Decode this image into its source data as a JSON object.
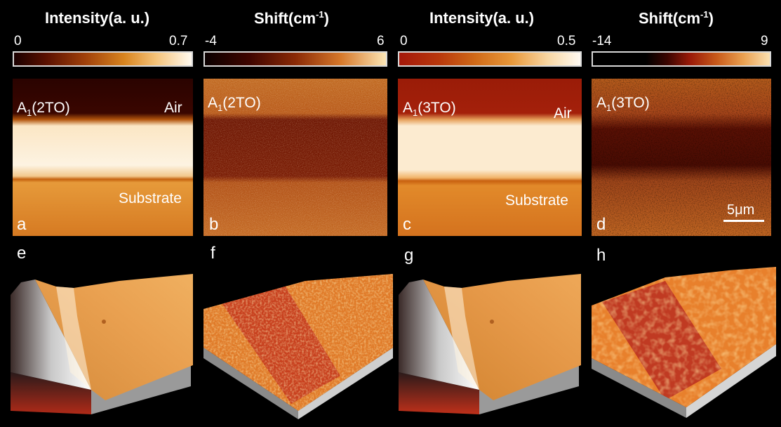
{
  "panels": [
    {
      "id": "a",
      "title": "Intensity(a. u.)",
      "tick_min": "0",
      "tick_max": "0.7",
      "mode_main": "A",
      "mode_sub": "1",
      "mode_rest": "(2TO)",
      "air": "Air",
      "substrate": "Substrate",
      "type": "intensity"
    },
    {
      "id": "b",
      "title_main": "Shift(cm",
      "title_sup": "-1",
      "title_end": ")",
      "tick_min": "-4",
      "tick_max": "6",
      "mode_main": "A",
      "mode_sub": "1",
      "mode_rest": "(2TO)",
      "type": "shift"
    },
    {
      "id": "c",
      "title": "Intensity(a. u.)",
      "tick_min": "0",
      "tick_max": "0.5",
      "mode_main": "A",
      "mode_sub": "1",
      "mode_rest": "(3TO)",
      "air": "Air",
      "substrate": "Substrate",
      "type": "intensity"
    },
    {
      "id": "d",
      "title_main": "Shift(cm",
      "title_sup": "-1",
      "title_end": ")",
      "tick_min": "-14",
      "tick_max": "9",
      "mode_main": "A",
      "mode_sub": "1",
      "mode_rest": "(3TO)",
      "scale_bar": "5μm",
      "type": "shift"
    }
  ],
  "surface_panels": [
    {
      "id": "e",
      "type": "intensity"
    },
    {
      "id": "f",
      "type": "shift"
    },
    {
      "id": "g",
      "type": "intensity"
    },
    {
      "id": "h",
      "type": "shift"
    }
  ],
  "colors": {
    "background": "#000000",
    "colormap_dark": "#2a0000",
    "colormap_mid": "#c85a14",
    "colormap_light": "#fdf6e8"
  }
}
